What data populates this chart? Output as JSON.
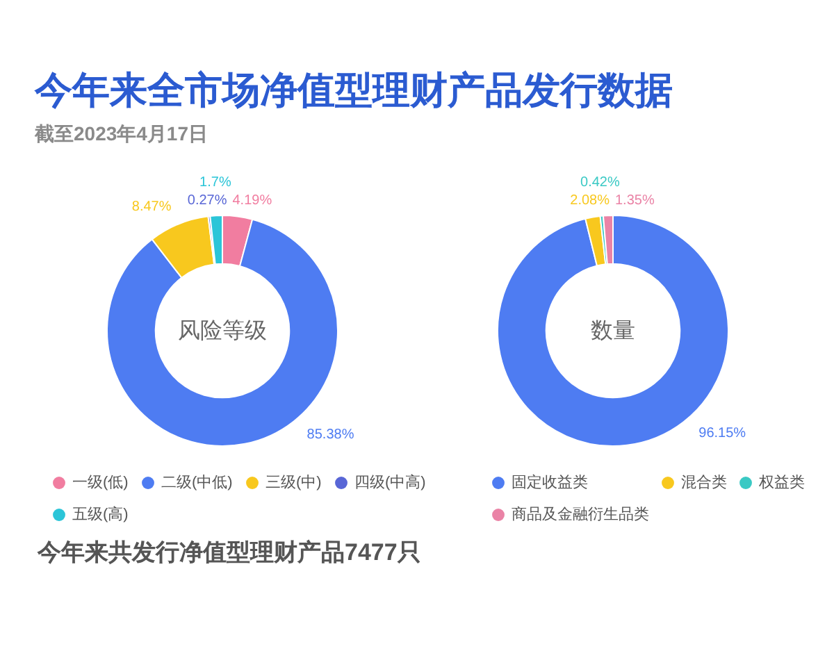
{
  "chart_data": [
    {
      "type": "donut",
      "title": "今年来全市场净值型理财产品发行数据",
      "subtitle": "截至2023年4月17日",
      "categories": [
        "一级(低)",
        "二级(中低)",
        "三级(中)",
        "四级(中高)",
        "五级(高)"
      ],
      "values": [
        4.19,
        85.38,
        8.47,
        0.27,
        1.7
      ],
      "colors": [
        "#f17da0",
        "#4e7cf2",
        "#f8c81e",
        "#5866d6",
        "#2bc5d8"
      ],
      "value_labels": [
        "4.19%",
        "85.38%",
        "8.47%",
        "0.27%",
        "1.7%"
      ],
      "legend": "bottom",
      "annotations": [
        "风险等级",
        "今年来共发行净值型理财产品7477只"
      ]
    },
    {
      "type": "donut",
      "categories": [
        "固定收益类",
        "混合类",
        "权益类",
        "商品及金融衍生品类"
      ],
      "values": [
        96.15,
        2.08,
        0.42,
        1.35
      ],
      "colors": [
        "#4e7cf2",
        "#f8c81e",
        "#3ac9c4",
        "#ea83a6"
      ],
      "value_labels": [
        "96.15%",
        "2.08%",
        "0.42%",
        "1.35%"
      ],
      "legend": "bottom",
      "annotations": [
        "数量"
      ]
    }
  ]
}
